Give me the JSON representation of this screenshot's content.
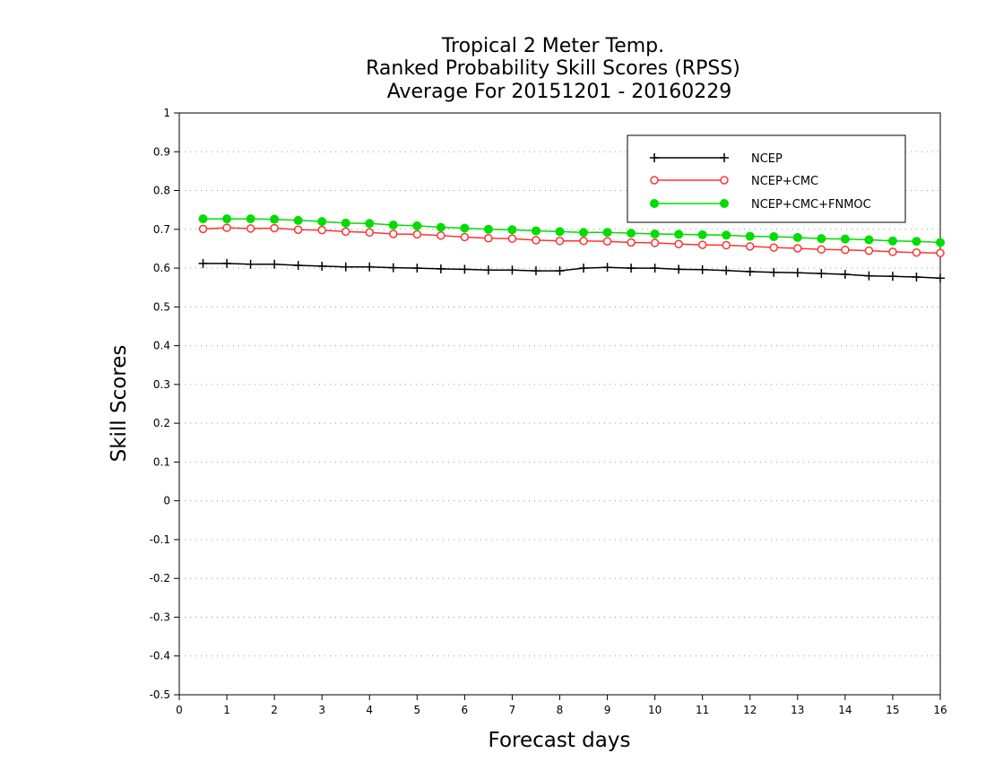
{
  "chart_data": {
    "type": "line",
    "title": "Tropical 2 Meter Temp.",
    "subtitle": "Ranked Probability Skill Scores (RPSS)",
    "subtitle2": "Average For 20151201 - 20160229",
    "xlabel": "Forecast days",
    "ylabel": "Skill Scores",
    "xlim": [
      0,
      16
    ],
    "ylim": [
      -0.5,
      1
    ],
    "xticks": [
      "0",
      "1",
      "2",
      "3",
      "4",
      "5",
      "6",
      "7",
      "8",
      "9",
      "10",
      "11",
      "12",
      "13",
      "14",
      "15",
      "16"
    ],
    "yticks": [
      "1",
      "0.9",
      "0.8",
      "0.7",
      "0.6",
      "0.5",
      "0.4",
      "0.3",
      "0.2",
      "0.1",
      "0",
      "-0.1",
      "-0.2",
      "-0.3",
      "-0.4",
      "-0.5"
    ],
    "grid": "horizontal dotted",
    "legend_position": "top-right",
    "x": [
      0.5,
      1,
      1.5,
      2,
      2.5,
      3,
      3.5,
      4,
      4.5,
      5,
      5.5,
      6,
      6.5,
      7,
      7.5,
      8,
      8.5,
      9,
      9.5,
      10,
      10.5,
      11,
      11.5,
      12,
      12.5,
      13,
      13.5,
      14,
      14.5,
      15,
      15.5,
      16
    ],
    "series": [
      {
        "name": "NCEP",
        "color": "#000000",
        "marker": "plus",
        "values": [
          0.612,
          0.612,
          0.61,
          0.61,
          0.607,
          0.605,
          0.603,
          0.603,
          0.601,
          0.6,
          0.598,
          0.597,
          0.595,
          0.595,
          0.593,
          0.593,
          0.6,
          0.602,
          0.6,
          0.6,
          0.597,
          0.596,
          0.594,
          0.591,
          0.589,
          0.588,
          0.586,
          0.584,
          0.58,
          0.579,
          0.577,
          0.574
        ]
      },
      {
        "name": "NCEP+CMC",
        "color": "#ff3333",
        "marker": "open-circle",
        "values": [
          0.701,
          0.704,
          0.702,
          0.703,
          0.699,
          0.698,
          0.694,
          0.692,
          0.688,
          0.687,
          0.684,
          0.68,
          0.677,
          0.676,
          0.672,
          0.67,
          0.67,
          0.669,
          0.666,
          0.665,
          0.662,
          0.66,
          0.659,
          0.656,
          0.653,
          0.651,
          0.648,
          0.647,
          0.645,
          0.642,
          0.64,
          0.639
        ]
      },
      {
        "name": "NCEP+CMC+FNMOC",
        "color": "#00dd00",
        "marker": "filled-circle",
        "values": [
          0.727,
          0.727,
          0.727,
          0.726,
          0.723,
          0.72,
          0.716,
          0.715,
          0.711,
          0.709,
          0.705,
          0.703,
          0.7,
          0.699,
          0.696,
          0.694,
          0.692,
          0.692,
          0.69,
          0.688,
          0.687,
          0.686,
          0.685,
          0.682,
          0.681,
          0.679,
          0.676,
          0.675,
          0.673,
          0.67,
          0.669,
          0.666
        ]
      }
    ]
  }
}
